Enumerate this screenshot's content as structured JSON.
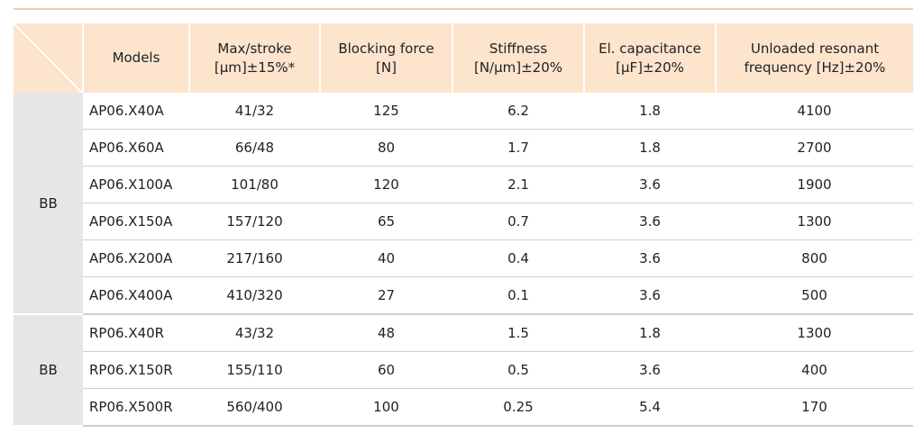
{
  "headers": {
    "models": "Models",
    "stroke_1": "Max/stroke",
    "stroke_2": "[μm]±15%*",
    "blocking_1": "Blocking force",
    "blocking_2": "[N]",
    "stiffness_1": "Stiffness",
    "stiffness_2": "[N/μm]±20%",
    "capacitance_1": "El. capacitance",
    "capacitance_2": "[μF]±20%",
    "frequency_1": "Unloaded resonant",
    "frequency_2": "frequency [Hz]±20%"
  },
  "groups": [
    {
      "label": "BB",
      "rows": [
        {
          "model": "AP06.X40A",
          "stroke": "41/32",
          "force": "125",
          "stiffness": "6.2",
          "capacitance": "1.8",
          "frequency": "4100"
        },
        {
          "model": "AP06.X60A",
          "stroke": "66/48",
          "force": "80",
          "stiffness": "1.7",
          "capacitance": "1.8",
          "frequency": "2700"
        },
        {
          "model": "AP06.X100A",
          "stroke": "101/80",
          "force": "120",
          "stiffness": "2.1",
          "capacitance": "3.6",
          "frequency": "1900"
        },
        {
          "model": "AP06.X150A",
          "stroke": "157/120",
          "force": "65",
          "stiffness": "0.7",
          "capacitance": "3.6",
          "frequency": "1300"
        },
        {
          "model": "AP06.X200A",
          "stroke": "217/160",
          "force": "40",
          "stiffness": "0.4",
          "capacitance": "3.6",
          "frequency": "800"
        },
        {
          "model": "AP06.X400A",
          "stroke": "410/320",
          "force": "27",
          "stiffness": "0.1",
          "capacitance": "3.6",
          "frequency": "500"
        }
      ]
    },
    {
      "label": "BB",
      "rows": [
        {
          "model": "RP06.X40R",
          "stroke": "43/32",
          "force": "48",
          "stiffness": "1.5",
          "capacitance": "1.8",
          "frequency": "1300"
        },
        {
          "model": "RP06.X150R",
          "stroke": "155/110",
          "force": "60",
          "stiffness": "0.5",
          "capacitance": "3.6",
          "frequency": "400"
        },
        {
          "model": "RP06.X500R",
          "stroke": "560/400",
          "force": "100",
          "stiffness": "0.25",
          "capacitance": "5.4",
          "frequency": "170"
        }
      ]
    }
  ]
}
